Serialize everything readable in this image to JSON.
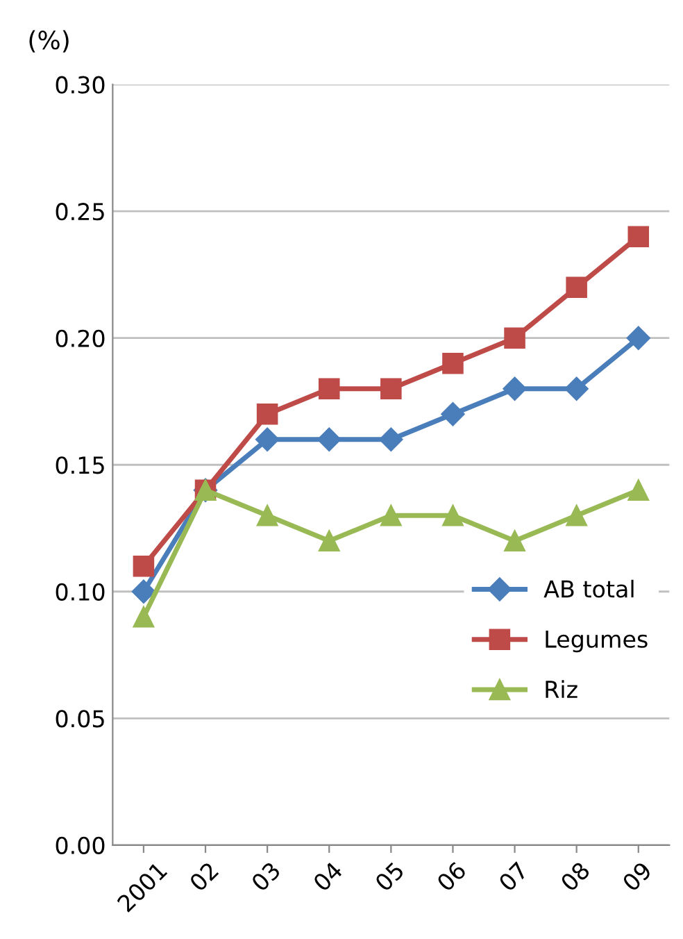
{
  "chart_data": {
    "type": "line",
    "ylabel": "(%)",
    "categories": [
      "2001",
      "02",
      "03",
      "04",
      "05",
      "06",
      "07",
      "08",
      "09"
    ],
    "series": [
      {
        "name": "AB total",
        "color": "#4a7ebb",
        "marker": "diamond",
        "values": [
          0.1,
          0.14,
          0.16,
          0.16,
          0.16,
          0.17,
          0.18,
          0.18,
          0.2
        ]
      },
      {
        "name": "Legumes",
        "color": "#be4b48",
        "marker": "square",
        "values": [
          0.11,
          0.14,
          0.17,
          0.18,
          0.18,
          0.19,
          0.2,
          0.22,
          0.24
        ]
      },
      {
        "name": "Riz",
        "color": "#98b954",
        "marker": "triangle",
        "values": [
          0.09,
          0.14,
          0.13,
          0.12,
          0.13,
          0.13,
          0.12,
          0.13,
          0.14
        ]
      }
    ],
    "ylim": [
      0,
      0.3
    ],
    "yticks": [
      {
        "value": 0,
        "label": "0.00"
      },
      {
        "value": 0.05,
        "label": "0.05"
      },
      {
        "value": 0.1,
        "label": "0.10"
      },
      {
        "value": 0.15,
        "label": "0.15"
      },
      {
        "value": 0.2,
        "label": "0.20"
      },
      {
        "value": 0.25,
        "label": "0.25"
      },
      {
        "value": 0.3,
        "label": "0.30"
      }
    ],
    "grid": "y",
    "legend": "bottom right",
    "line_style": "solid"
  }
}
